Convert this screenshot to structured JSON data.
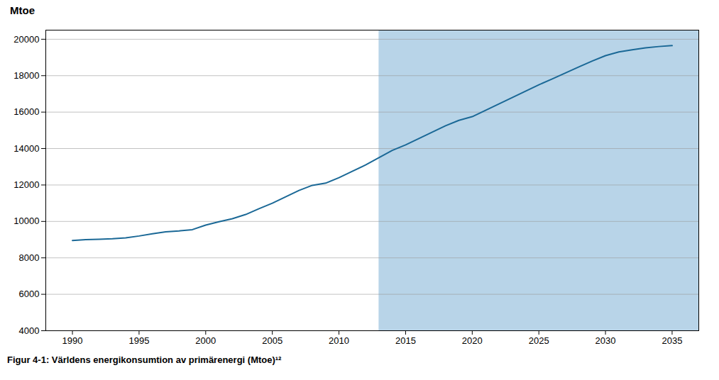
{
  "chart_data": {
    "type": "line",
    "ylabel": "Mtoe",
    "caption": "Figur 4-1: Världens energikonsumtion av primärenergi (Mtoe)¹²",
    "x": [
      1990,
      1991,
      1992,
      1993,
      1994,
      1995,
      1996,
      1997,
      1998,
      1999,
      2000,
      2001,
      2002,
      2003,
      2004,
      2005,
      2006,
      2007,
      2008,
      2009,
      2010,
      2011,
      2012,
      2013,
      2014,
      2015,
      2016,
      2017,
      2018,
      2019,
      2020,
      2021,
      2022,
      2023,
      2024,
      2025,
      2026,
      2027,
      2028,
      2029,
      2030,
      2031,
      2032,
      2033,
      2034,
      2035
    ],
    "values": [
      8950,
      9000,
      9020,
      9050,
      9100,
      9200,
      9320,
      9430,
      9480,
      9550,
      9800,
      9980,
      10150,
      10380,
      10700,
      11000,
      11350,
      11700,
      11980,
      12100,
      12400,
      12750,
      13100,
      13500,
      13900,
      14200,
      14550,
      14900,
      15250,
      15550,
      15750,
      16100,
      16450,
      16800,
      17150,
      17500,
      17820,
      18150,
      18480,
      18800,
      19100,
      19300,
      19420,
      19530,
      19600,
      19650
    ],
    "color": "#1a6896",
    "shaded_region": {
      "start": 2013,
      "end": 2037,
      "color": "#b8d4e8"
    },
    "xlim": [
      1988,
      2037
    ],
    "ylim": [
      4000,
      20500
    ],
    "xticks": [
      1990,
      1995,
      2000,
      2005,
      2010,
      2015,
      2020,
      2025,
      2030,
      2035
    ],
    "yticks": [
      4000,
      6000,
      8000,
      10000,
      12000,
      14000,
      16000,
      18000,
      20000
    ],
    "grid": true
  }
}
